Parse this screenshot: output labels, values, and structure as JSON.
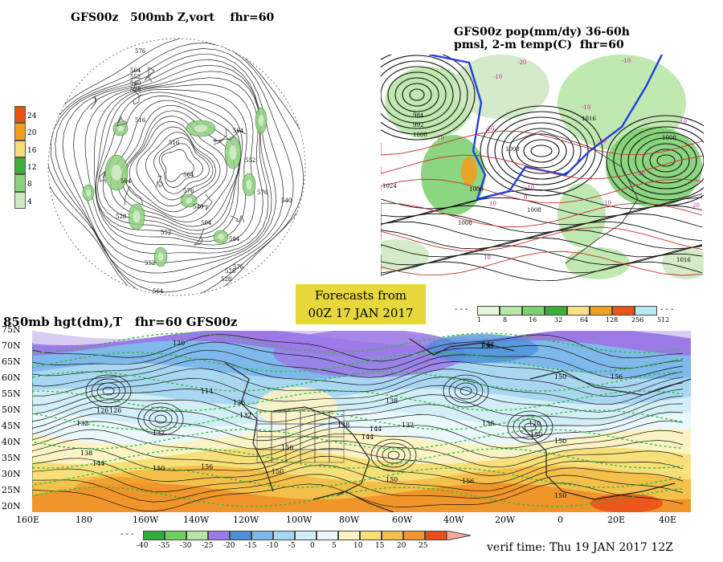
{
  "panels": {
    "z500": {
      "title": "GFS00z   500mb Z,vort    fhr=60",
      "colorbar_ticks": [
        "24",
        "20",
        "16",
        "12",
        "8",
        "4"
      ],
      "colorbar_colors": [
        "#e8540f",
        "#f0a020",
        "#f7dc7a",
        "#3fae3c",
        "#8fd07e",
        "#cfe9c3"
      ],
      "contour_labels": [
        "576",
        "564",
        "552",
        "540",
        "528",
        "516",
        "504",
        "528",
        "552",
        "564",
        "576",
        "540",
        "552",
        "564",
        "576",
        "584",
        "564",
        "576",
        "516",
        "540",
        "504",
        "528",
        "528",
        "552"
      ]
    },
    "pop": {
      "title_line1": "GFS00z pop(mm/dy) 36-60h",
      "title_line2": "pmsl, 2-m temp(C)  fhr=60",
      "colorbar_ticks": [
        "1",
        "8",
        "16",
        "32",
        "64",
        "128",
        "256",
        "512"
      ],
      "colorbar_colors": [
        "#e6f5d8",
        "#b9e6a9",
        "#7fd073",
        "#3cae3c",
        "#f7e08a",
        "#f0a020",
        "#e8541a",
        "#b8e8f0"
      ],
      "pressure_labels": [
        "984",
        "992",
        "1000",
        "1024",
        "1008",
        "1016",
        "1008",
        "1008",
        "1000",
        "1008",
        "1016"
      ],
      "temp_labels": [
        "-20",
        "-10",
        "-10",
        "-10",
        "-20",
        "-10",
        "10",
        "10",
        "10",
        "20",
        "0",
        "-10",
        "10",
        "20",
        "10"
      ]
    },
    "forecast_box": {
      "line1": "Forecasts from",
      "line2": "00Z 17 JAN 2017"
    },
    "h850": {
      "title": "850mb hgt(dm),T   fhr=60 GFS00z",
      "lat_labels": [
        "75N",
        "70N",
        "65N",
        "60N",
        "55N",
        "50N",
        "45N",
        "40N",
        "35N",
        "30N",
        "25N",
        "20N"
      ],
      "lon_labels": [
        "160E",
        "180",
        "160W",
        "140W",
        "120W",
        "100W",
        "80W",
        "60W",
        "40W",
        "20W",
        "0",
        "20E",
        "40E"
      ],
      "height_labels": [
        "120",
        "114",
        "126",
        "132",
        "138",
        "144",
        "150",
        "156",
        "126",
        "132",
        "138",
        "144",
        "150",
        "138",
        "132",
        "144",
        "150",
        "156",
        "150",
        "138",
        "150",
        "156",
        "120",
        "126",
        "132",
        "138",
        "144",
        "150",
        "156",
        "150"
      ],
      "temp_colorbar_ticks": [
        "-40",
        "-35",
        "-30",
        "-25",
        "-20",
        "-15",
        "-10",
        "-5",
        "0",
        "5",
        "10",
        "15",
        "20",
        "25"
      ],
      "temp_colorbar_colors": [
        "#2fae3c",
        "#6fcf5e",
        "#b4e6a6",
        "#9c7ae6",
        "#4a8fd8",
        "#7fb8ea",
        "#a9d7f2",
        "#d2eef7",
        "#eaf7fb",
        "#fbf3c4",
        "#f7df7a",
        "#f5c04a",
        "#f0952a",
        "#ea4d18"
      ],
      "verif_time": "verif time: Thu 19 JAN 2017 12Z"
    }
  }
}
